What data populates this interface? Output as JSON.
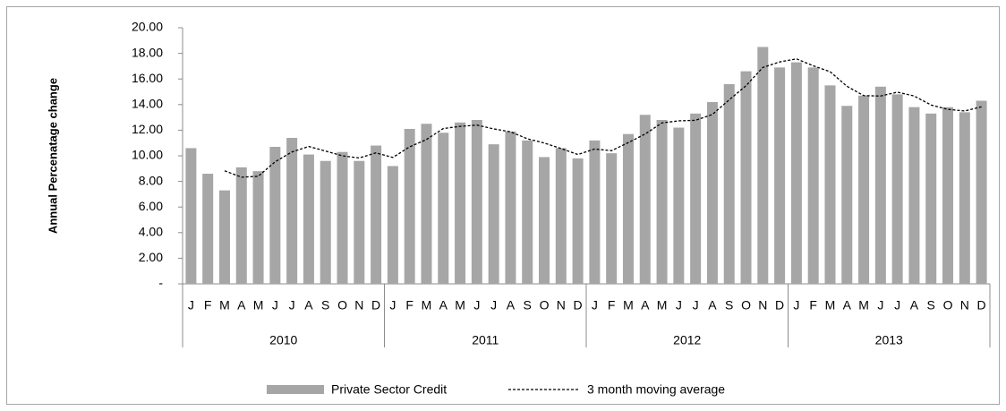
{
  "chart_data": {
    "type": "bar-line",
    "y_label": "Annual Percenatage change",
    "categories": [
      "J",
      "F",
      "M",
      "A",
      "M",
      "J",
      "J",
      "A",
      "S",
      "O",
      "N",
      "D",
      "J",
      "F",
      "M",
      "A",
      "M",
      "J",
      "J",
      "A",
      "S",
      "O",
      "N",
      "D",
      "J",
      "F",
      "M",
      "A",
      "M",
      "J",
      "J",
      "A",
      "S",
      "O",
      "N",
      "D",
      "J",
      "F",
      "M",
      "A",
      "M",
      "J",
      "J",
      "A",
      "S",
      "O",
      "N",
      "D"
    ],
    "category_groups": [
      "2010",
      "2011",
      "2012",
      "2013"
    ],
    "series": [
      {
        "name": "Private Sector Credit",
        "kind": "bar",
        "color": "#a6a6a6",
        "values": [
          10.6,
          8.6,
          7.3,
          9.1,
          8.8,
          10.7,
          11.4,
          10.1,
          9.6,
          10.3,
          9.6,
          10.8,
          9.2,
          12.1,
          12.5,
          11.8,
          12.6,
          12.8,
          10.9,
          11.9,
          11.2,
          9.9,
          10.6,
          9.8,
          11.2,
          10.2,
          11.7,
          13.2,
          12.8,
          12.2,
          13.3,
          14.2,
          15.6,
          16.6,
          18.5,
          16.9,
          17.3,
          16.9,
          15.5,
          13.9,
          14.7,
          15.4,
          14.8,
          13.8,
          13.3,
          13.8,
          13.4,
          14.3
        ]
      },
      {
        "name": "3 month moving average",
        "kind": "line",
        "color": "#000000",
        "dashed": true,
        "values": [
          null,
          null,
          8.83,
          8.33,
          8.4,
          9.53,
          10.3,
          10.73,
          10.37,
          10.0,
          9.83,
          10.23,
          9.87,
          10.7,
          11.27,
          12.13,
          12.3,
          12.4,
          12.1,
          11.87,
          11.33,
          11.0,
          10.57,
          10.1,
          10.53,
          10.4,
          11.03,
          11.7,
          12.57,
          12.73,
          12.77,
          13.23,
          14.37,
          15.47,
          16.9,
          17.33,
          17.57,
          17.03,
          16.57,
          15.43,
          14.7,
          14.67,
          14.97,
          14.67,
          13.97,
          13.63,
          13.5,
          13.83
        ]
      }
    ],
    "ylim": [
      0,
      20
    ],
    "yticks": [
      {
        "value": 0,
        "label": "-"
      },
      {
        "value": 2,
        "label": "2.00"
      },
      {
        "value": 4,
        "label": "4.00"
      },
      {
        "value": 6,
        "label": "6.00"
      },
      {
        "value": 8,
        "label": "8.00"
      },
      {
        "value": 10,
        "label": "10.00"
      },
      {
        "value": 12,
        "label": "12.00"
      },
      {
        "value": 14,
        "label": "14.00"
      },
      {
        "value": 16,
        "label": "16.00"
      },
      {
        "value": 18,
        "label": "18.00"
      },
      {
        "value": 20,
        "label": "20.00"
      }
    ],
    "grid": false,
    "legend": "bottom"
  }
}
